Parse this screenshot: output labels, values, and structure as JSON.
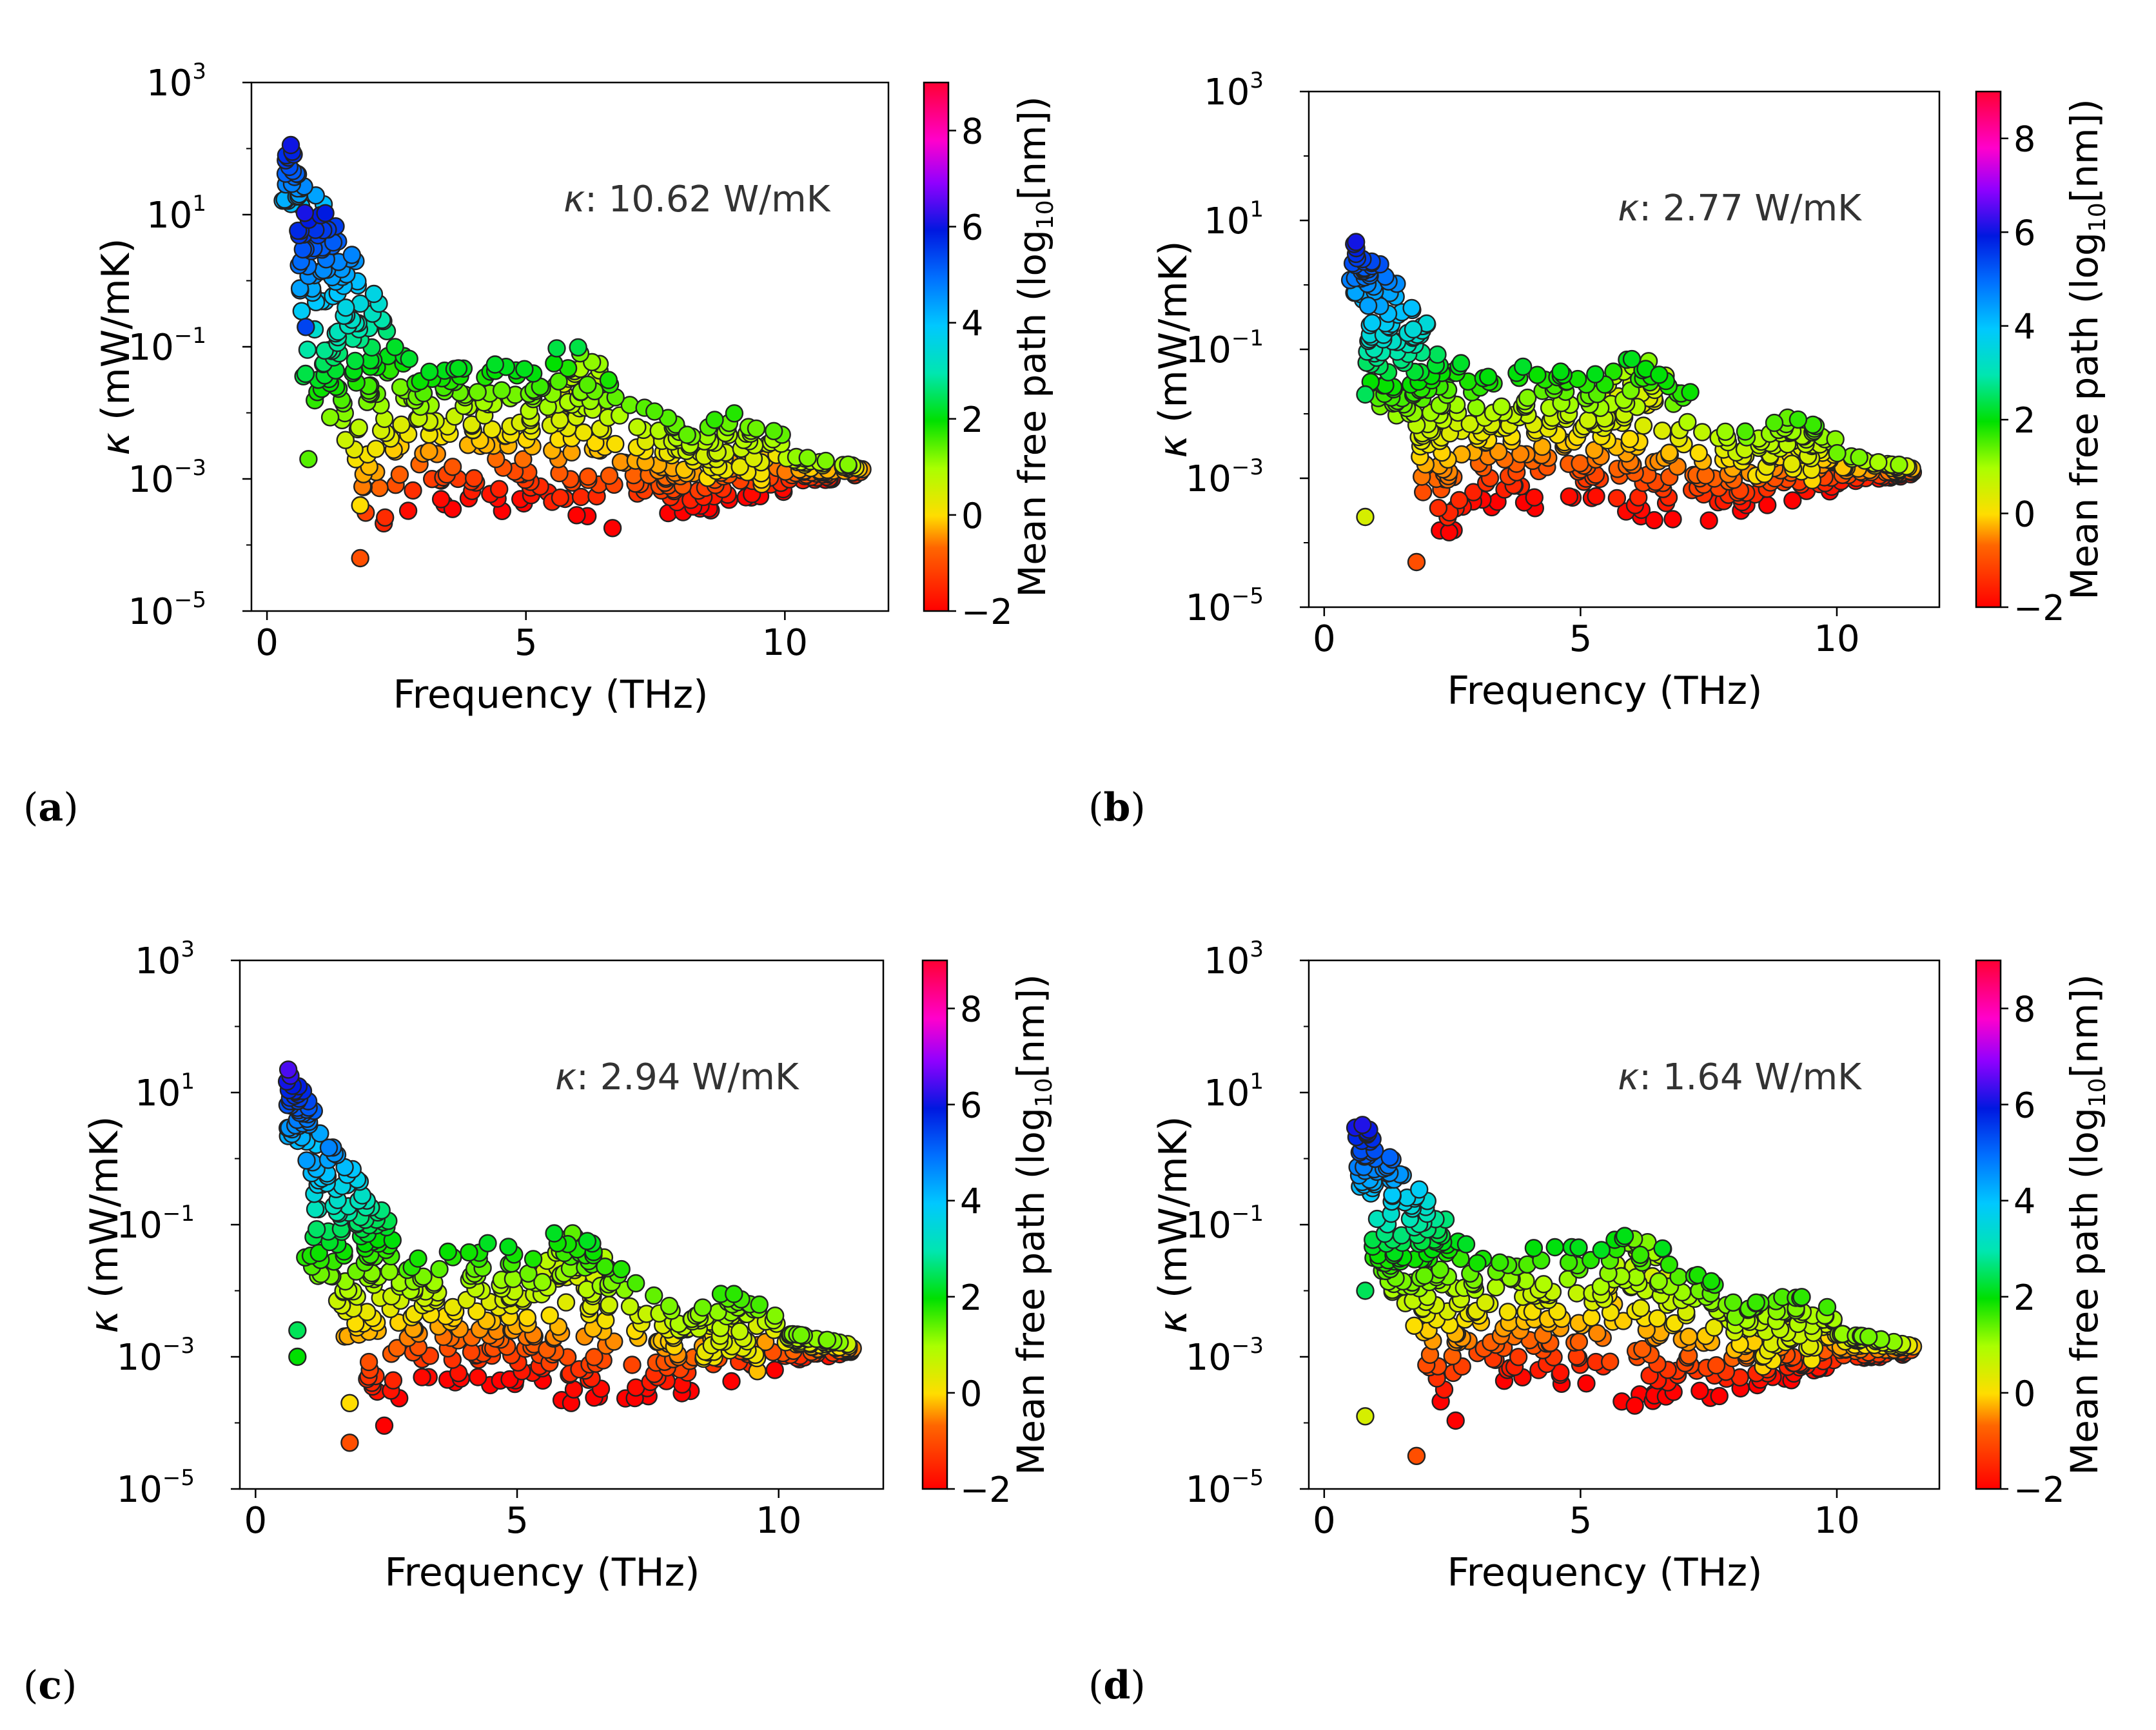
{
  "figure": {
    "colorbar": {
      "label_main": "Mean free path (log",
      "label_sub": "10",
      "label_end": "[nm])",
      "ticks": [
        "8",
        "6",
        "4",
        "2",
        "0",
        "−2"
      ],
      "range": [
        -2,
        9
      ]
    },
    "axis": {
      "x_label": "Frequency (THz)",
      "y_label_sym": "κ",
      "y_label_unit": " (mW/mK)",
      "x_ticks": [
        "0",
        "5",
        "10"
      ],
      "y_tick_base": "10",
      "y_tick_exps": [
        "3",
        "1",
        "−1",
        "−3",
        "−5"
      ]
    }
  },
  "chart_data": [
    {
      "type": "scatter",
      "panel": "a",
      "label_open": "(",
      "label_letter": "a",
      "label_close": ")",
      "annotation_sym": "κ",
      "annotation_text": ": 10.62 W/mK",
      "xlabel": "Frequency (THz)",
      "ylabel": "κ (mW/mK)",
      "xlim": [
        -0.3,
        12.0
      ],
      "ylim_log10": [
        -5,
        3
      ],
      "colorbar_label": "Mean free path (log10[nm])",
      "colorbar_range": [
        -2,
        9
      ],
      "x_peak": 0.3,
      "low_k_peak": 2.3,
      "k_max_log10": 2.3,
      "features": [
        [
          6.1,
          -1.0,
          0.22
        ],
        [
          9.0,
          -2.0,
          0.22
        ]
      ],
      "isolated_points": [
        [
          0.8,
          -2.7,
          1.5
        ],
        [
          0.75,
          -0.7,
          5.5
        ],
        [
          1.8,
          -3.4,
          0.0
        ],
        [
          1.8,
          -4.2,
          -1.0
        ]
      ]
    },
    {
      "type": "scatter",
      "panel": "b",
      "label_open": "(",
      "label_letter": "b",
      "label_close": ")",
      "annotation_sym": "κ",
      "annotation_text": ": 2.77 W/mK",
      "xlabel": "Frequency (THz)",
      "ylabel": "κ (mW/mK)",
      "xlim": [
        -0.3,
        12.0
      ],
      "ylim_log10": [
        -5,
        3
      ],
      "colorbar_label": "Mean free path (log10[nm])",
      "colorbar_range": [
        -2,
        9
      ],
      "x_peak": 0.5,
      "low_k_peak": 2.3,
      "k_max_log10": 0.9,
      "features": [
        [
          6.1,
          -1.0,
          0.2
        ],
        [
          9.0,
          -2.0,
          0.2
        ]
      ],
      "isolated_points": [
        [
          0.8,
          -3.6,
          0.5
        ],
        [
          0.8,
          -1.7,
          2.5
        ],
        [
          1.8,
          -4.3,
          -1.0
        ]
      ]
    },
    {
      "type": "scatter",
      "panel": "c",
      "label_open": "(",
      "label_letter": "c",
      "label_close": ")",
      "annotation_sym": "κ",
      "annotation_text": ": 2.94 W/mK",
      "xlabel": "Frequency (THz)",
      "ylabel": "κ (mW/mK)",
      "xlim": [
        -0.3,
        12.0
      ],
      "ylim_log10": [
        -5,
        3
      ],
      "colorbar_label": "Mean free path (log10[nm])",
      "colorbar_range": [
        -2,
        9
      ],
      "x_peak": 0.6,
      "low_k_peak": 2.4,
      "k_max_log10": 1.4,
      "features": [
        [
          6.1,
          -1.1,
          0.2
        ],
        [
          9.0,
          -2.1,
          0.2
        ]
      ],
      "isolated_points": [
        [
          0.8,
          -2.6,
          2.5
        ],
        [
          0.8,
          -3.0,
          2.0
        ],
        [
          1.8,
          -4.3,
          -1.0
        ],
        [
          1.8,
          -3.7,
          0.0
        ]
      ]
    },
    {
      "type": "scatter",
      "panel": "d",
      "label_open": "(",
      "label_letter": "d",
      "label_close": ")",
      "annotation_sym": "κ",
      "annotation_text": ": 1.64 W/mK",
      "xlabel": "Frequency (THz)",
      "ylabel": "κ (mW/mK)",
      "xlim": [
        -0.3,
        12.0
      ],
      "ylim_log10": [
        -5,
        3
      ],
      "colorbar_label": "Mean free path (log10[nm])",
      "colorbar_range": [
        -2,
        9
      ],
      "x_peak": 0.6,
      "low_k_peak": 2.4,
      "k_max_log10": 0.7,
      "features": [
        [
          6.1,
          -1.1,
          0.2
        ],
        [
          9.0,
          -2.1,
          0.2
        ]
      ],
      "isolated_points": [
        [
          0.8,
          -3.9,
          0.5
        ],
        [
          0.8,
          -2.0,
          2.5
        ],
        [
          1.8,
          -4.5,
          -1.0
        ]
      ]
    }
  ]
}
